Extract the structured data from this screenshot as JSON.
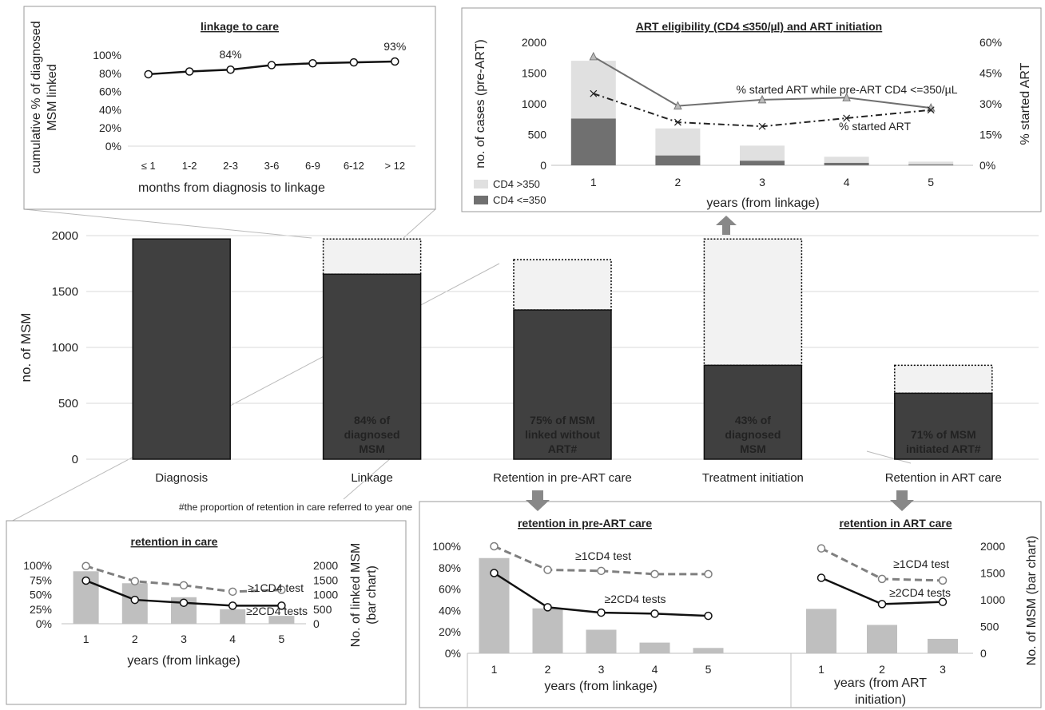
{
  "chart_data": [
    {
      "id": "main",
      "type": "bar",
      "ylabel": "no. of MSM",
      "ylim": [
        0,
        2000
      ],
      "yticks": [
        0,
        500,
        1000,
        1500,
        2000
      ],
      "grid": true,
      "categories": [
        "Diagnosis",
        "Linkage",
        "Retention in pre-ART care",
        "Treatment initiation",
        "Retention in ART care"
      ],
      "series": [
        {
          "values": [
            1970,
            1655,
            1335,
            840,
            590
          ],
          "color": "#404040"
        },
        {
          "values": [
            0,
            1970,
            1785,
            1970,
            840
          ],
          "color": "#f2f2f2"
        }
      ],
      "bar_labels": [
        [],
        [
          "84% of",
          "diagnosed",
          "MSM"
        ],
        [
          "75% of MSM",
          "linked without",
          "ART#"
        ],
        [
          "43% of",
          "diagnosed",
          "MSM"
        ],
        [
          "71% of MSM",
          "initiated ART#"
        ]
      ],
      "footnote": "#the proportion of retention in care referred to year one"
    },
    {
      "id": "linkage",
      "type": "line",
      "title": "linkage to care",
      "xlabel": "months from diagnosis to linkage",
      "ylabel": [
        "cumulative % of diagnosed",
        "MSM linked"
      ],
      "ylim": [
        0,
        100
      ],
      "yticks": [
        "0%",
        "20%",
        "40%",
        "60%",
        "80%",
        "100%"
      ],
      "categories": [
        "≤ 1",
        "1-2",
        "2-3",
        "3-6",
        "6-9",
        "6-12",
        "> 12"
      ],
      "values": [
        79,
        82,
        84,
        89,
        91,
        92,
        93
      ],
      "annotations": [
        {
          "index": 2,
          "text": "84%"
        },
        {
          "index": 6,
          "text": "93%"
        }
      ]
    },
    {
      "id": "art",
      "type": "bar",
      "title": "ART eligibility (CD4 ≤350/µl) and ART initiation",
      "xlabel": "years (from linkage)",
      "ylabel": "no. of cases (pre-ART)",
      "y2label": "% started ART",
      "ylim": [
        0,
        2000
      ],
      "y2lim": [
        0,
        60
      ],
      "yticks": [
        0,
        500,
        1000,
        1500,
        2000
      ],
      "y2ticks": [
        "0%",
        "15%",
        "30%",
        "45%",
        "60%"
      ],
      "categories": [
        "1",
        "2",
        "3",
        "4",
        "5"
      ],
      "series": [
        {
          "name": "CD4 <=350",
          "values": [
            760,
            160,
            75,
            40,
            15
          ],
          "color": "#707070"
        },
        {
          "name": "CD4 >350",
          "values": [
            940,
            440,
            245,
            100,
            45
          ],
          "color": "#e0e0e0"
        }
      ],
      "lines": [
        {
          "name": "% started ART while pre-ART CD4 <=350/µL",
          "values": [
            53,
            29,
            32,
            33,
            28
          ],
          "color": "#707070"
        },
        {
          "name": "% started ART",
          "values": [
            35,
            21,
            19,
            23,
            27
          ],
          "color": "#222222"
        }
      ]
    },
    {
      "id": "retention",
      "type": "bar",
      "title": "retention in care",
      "xlabel": "years (from linkage)",
      "y2label": [
        "No. of linked MSM",
        "(bar chart)"
      ],
      "ylim": [
        0,
        100
      ],
      "y2lim": [
        0,
        2000
      ],
      "yticks": [
        "0%",
        "25%",
        "50%",
        "75%",
        "100%"
      ],
      "y2ticks": [
        "0",
        "500",
        "1000",
        "1500",
        "2000"
      ],
      "categories": [
        "1",
        "2",
        "3",
        "4",
        "5"
      ],
      "bars": [
        1800,
        1390,
        910,
        500,
        270
      ],
      "lines": [
        {
          "name": "≥1CD4 test",
          "values": [
            99,
            73,
            66,
            55,
            58
          ]
        },
        {
          "name": "≥2CD4 tests",
          "values": [
            74,
            41,
            36,
            31,
            31
          ]
        }
      ]
    },
    {
      "id": "preart",
      "type": "bar",
      "title": "retention in pre-ART care",
      "xlabel": "years (from linkage)",
      "ylim": [
        0,
        100
      ],
      "yticks": [
        "0%",
        "20%",
        "40%",
        "60%",
        "80%",
        "100%"
      ],
      "categories": [
        "1",
        "2",
        "3",
        "4",
        "5"
      ],
      "bars": [
        89,
        42,
        22,
        10,
        5
      ],
      "lines": [
        {
          "name": "≥1CD4 test",
          "values": [
            100,
            78,
            77,
            74,
            74
          ]
        },
        {
          "name": "≥2CD4 tests",
          "values": [
            75,
            43,
            38,
            37,
            35
          ]
        }
      ]
    },
    {
      "id": "artcare",
      "type": "bar",
      "title": "retention in ART care",
      "xlabel": [
        "years (from ART",
        "initiation)"
      ],
      "y2label": "No. of MSM (bar chart)",
      "y2lim": [
        0,
        2000
      ],
      "y2ticks": [
        "0",
        "500",
        "1000",
        "1500",
        "2000"
      ],
      "categories": [
        "1",
        "2",
        "3"
      ],
      "bars": [
        830,
        530,
        270
      ],
      "lines": [
        {
          "name": "≥1CD4 test",
          "values": [
            1960,
            1390,
            1360
          ]
        },
        {
          "name": "≥2CD4 tests",
          "values": [
            1410,
            920,
            960
          ]
        }
      ]
    }
  ]
}
